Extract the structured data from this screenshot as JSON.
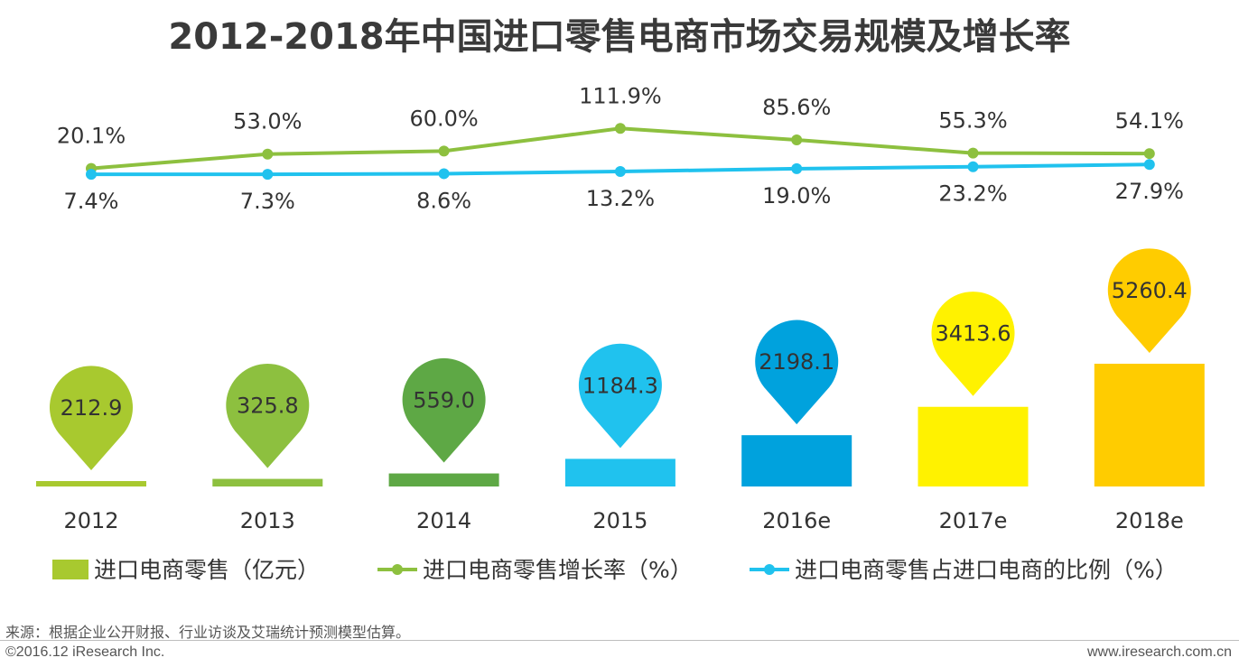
{
  "title": "2012-2018年中国进口零售电商市场交易规模及增长率",
  "chart_data": {
    "type": "bar+line",
    "categories": [
      "2012",
      "2013",
      "2014",
      "2015",
      "2016e",
      "2017e",
      "2018e"
    ],
    "bar_series": {
      "name": "进口电商零售（亿元）",
      "values": [
        212.9,
        325.8,
        559.0,
        1184.3,
        2198.1,
        3413.6,
        5260.4
      ],
      "labels": [
        "212.9",
        "325.8",
        "559.0",
        "1184.3",
        "2198.1",
        "3413.6",
        "5260.4"
      ],
      "colors": [
        "#a8c92f",
        "#8dc03f",
        "#5ea845",
        "#20c2ee",
        "#00a2dd",
        "#fff200",
        "#ffcc00"
      ]
    },
    "line_series": [
      {
        "name": "进口电商零售增长率（%）",
        "values": [
          20.1,
          53.0,
          60.0,
          111.9,
          85.6,
          55.3,
          54.1
        ],
        "labels": [
          "20.1%",
          "53.0%",
          "60.0%",
          "111.9%",
          "85.6%",
          "55.3%",
          "54.1%"
        ],
        "color": "#8dc03f"
      },
      {
        "name": "进口电商零售占进口电商的比例（%）",
        "values": [
          7.4,
          7.3,
          8.6,
          13.2,
          19.0,
          23.2,
          27.9
        ],
        "labels": [
          "7.4%",
          "7.3%",
          "8.6%",
          "13.2%",
          "19.0%",
          "23.2%",
          "27.9%"
        ],
        "color": "#20c2ee"
      }
    ],
    "legend_position": "bottom"
  },
  "footer": {
    "source": "来源：根据企业公开财报、行业访谈及艾瑞统计预测模型估算。",
    "copyright": "©2016.12 iResearch Inc.",
    "website": "www.iresearch.com.cn"
  }
}
